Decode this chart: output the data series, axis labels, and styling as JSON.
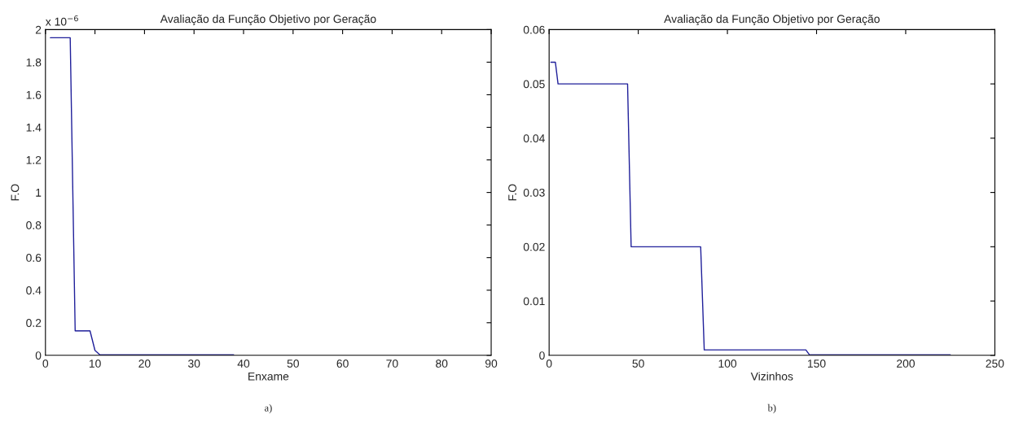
{
  "chart_data": [
    {
      "type": "line",
      "title": "Avaliação da Função Objetivo por Geração",
      "xlabel": "Enxame",
      "ylabel": "F.O",
      "annotations": [
        "x 10$^{−6}$",
        "a)"
      ],
      "x": [
        1,
        5,
        6,
        9,
        10,
        11,
        38
      ],
      "series": [
        {
          "color": "#1f1f9a",
          "values": [
            1.95,
            1.95,
            0.15,
            0.15,
            0.03,
            0.003,
            0.003
          ]
        }
      ],
      "xlim": [
        0,
        90
      ],
      "xticks": [
        0,
        10,
        20,
        30,
        40,
        50,
        60,
        70,
        80,
        90
      ],
      "ylim": [
        0,
        2
      ],
      "yticks": [
        0,
        0.2,
        0.4,
        0.6,
        0.8,
        1,
        1.2,
        1.4,
        1.6,
        1.8,
        2
      ],
      "grid": false,
      "legend": false
    },
    {
      "type": "line",
      "title": "Avaliação da Função Objetivo por Geração",
      "xlabel": "Vizinhos",
      "ylabel": "F.O",
      "annotations": [
        "b)"
      ],
      "x": [
        1,
        3.5,
        5,
        44,
        46,
        85,
        87,
        144,
        146,
        225
      ],
      "series": [
        {
          "color": "#1f1f9a",
          "values": [
            0.054,
            0.054,
            0.05,
            0.05,
            0.02,
            0.02,
            0.001,
            0.001,
            0.0001,
            0.0001
          ]
        }
      ],
      "xlim": [
        0,
        250
      ],
      "xticks": [
        0,
        50,
        100,
        150,
        200,
        250
      ],
      "ylim": [
        0,
        0.06
      ],
      "yticks": [
        0,
        0.01,
        0.02,
        0.03,
        0.04,
        0.05,
        0.06
      ],
      "grid": false,
      "legend": false
    }
  ]
}
